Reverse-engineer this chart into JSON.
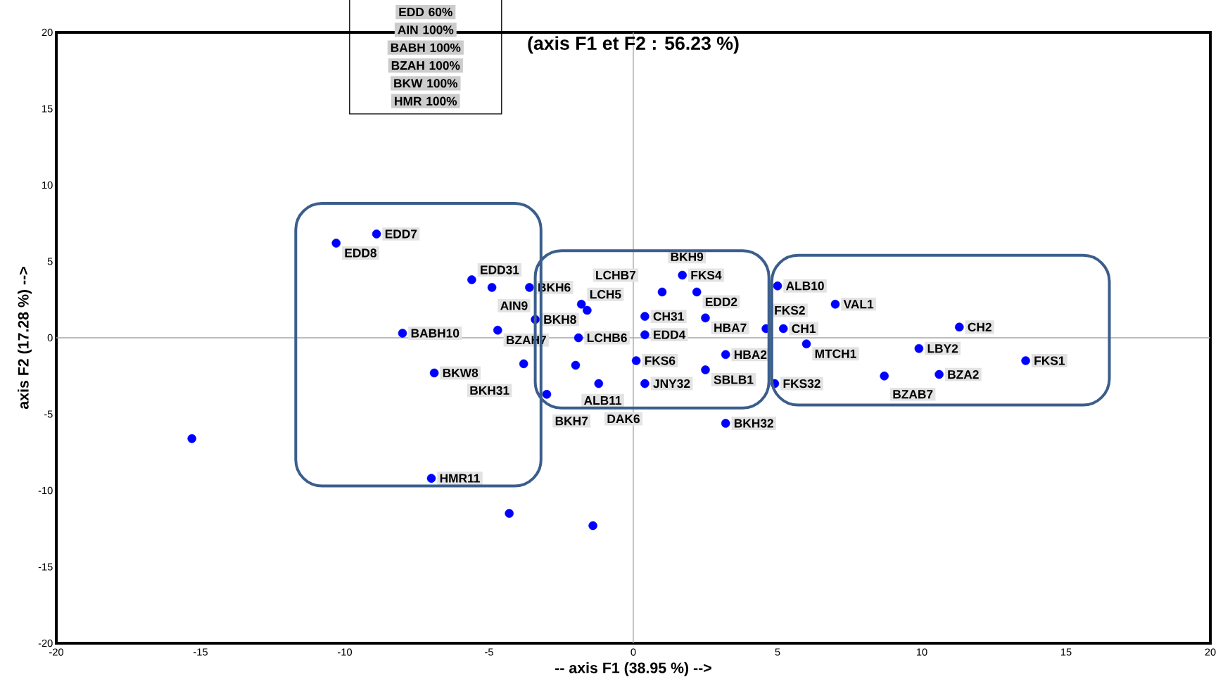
{
  "chart_data": {
    "type": "scatter",
    "title": "(axis F1 et F2 : 56.23 %)",
    "xlabel": "-- axis F1 (38.95 %) -->",
    "ylabel": "axis F2 (17.28 %) -->",
    "xlim": [
      -20,
      20
    ],
    "ylim": [
      -20,
      20
    ],
    "xticks": [
      -20,
      -15,
      -10,
      -5,
      0,
      5,
      10,
      15,
      20
    ],
    "yticks": [
      -20,
      -15,
      -10,
      -5,
      0,
      5,
      10,
      15,
      20
    ],
    "marker": "circle",
    "series": [
      {
        "color": "#0000ff",
        "x": [
          -10.3,
          -8.9,
          -5.6,
          -4.9,
          -8.0,
          -4.7,
          -6.9,
          -7.0,
          -3.6,
          -1.8,
          -1.6,
          -3.4,
          -1.9,
          -3.8,
          -2.0,
          -3.0,
          -1.2,
          1.7,
          1.0,
          2.2,
          0.4,
          0.4,
          2.5,
          3.2,
          0.1,
          0.4,
          2.5,
          3.2,
          4.6,
          5.0,
          7.0,
          5.2,
          6.0,
          4.9,
          8.7,
          9.9,
          11.3,
          10.6,
          13.6,
          -15.3,
          -4.3,
          -1.4
        ],
        "values": [
          6.2,
          6.8,
          3.8,
          3.3,
          0.3,
          0.5,
          -2.3,
          -9.2,
          3.3,
          2.2,
          1.8,
          1.2,
          0.0,
          -1.7,
          -1.8,
          -3.7,
          -3.0,
          4.1,
          3.0,
          3.0,
          1.4,
          0.2,
          1.3,
          -1.1,
          -1.5,
          -3.0,
          -2.1,
          -5.6,
          0.6,
          3.4,
          2.2,
          0.6,
          -0.4,
          -3.0,
          -2.5,
          -0.7,
          0.7,
          -2.4,
          -1.5,
          -6.6,
          -11.5,
          -12.3
        ]
      }
    ],
    "annotations": [
      "EDD 60%",
      "AIN 100%",
      "BABH 100%",
      "BZAH 100%",
      "BKW 100%",
      "HMR 100%",
      {
        "text": "EDD8",
        "x": -10.3,
        "y": 6.2
      },
      {
        "text": "EDD7",
        "x": -8.9,
        "y": 6.8
      },
      {
        "text": "EDD31",
        "x": -5.6,
        "y": 3.8
      },
      {
        "text": "AIN9",
        "x": -4.9,
        "y": 3.3
      },
      {
        "text": "BABH10",
        "x": -8.0,
        "y": 0.3
      },
      {
        "text": "BZAH7",
        "x": -4.7,
        "y": 0.5
      },
      {
        "text": "BKW8",
        "x": -6.9,
        "y": -2.3
      },
      {
        "text": "HMR11",
        "x": -7.0,
        "y": -9.2
      },
      {
        "text": "BKH6",
        "x": -3.6,
        "y": 3.3
      },
      {
        "text": "LCH5",
        "x": -1.8,
        "y": 2.2
      },
      {
        "text": "LCHB7",
        "x": -1.6,
        "y": 1.8
      },
      {
        "text": "BKH8",
        "x": -3.4,
        "y": 1.2
      },
      {
        "text": "LCHB6",
        "x": -1.9,
        "y": 0.0
      },
      {
        "text": "BKH31",
        "x": -3.8,
        "y": -1.7
      },
      {
        "text": "ALB11",
        "x": -2.0,
        "y": -1.8
      },
      {
        "text": "BKH7",
        "x": -3.0,
        "y": -3.7
      },
      {
        "text": "DAK6",
        "x": -1.2,
        "y": -3.0
      },
      {
        "text": "FKS4",
        "x": 1.7,
        "y": 4.1
      },
      {
        "text": "BKH9",
        "x": 1.0,
        "y": 3.0
      },
      {
        "text": "EDD2",
        "x": 2.2,
        "y": 3.0
      },
      {
        "text": "CH31",
        "x": 0.4,
        "y": 1.4
      },
      {
        "text": "EDD4",
        "x": 0.4,
        "y": 0.2
      },
      {
        "text": "HBA7",
        "x": 2.5,
        "y": 1.3
      },
      {
        "text": "HBA2",
        "x": 3.2,
        "y": -1.1
      },
      {
        "text": "FKS6",
        "x": 0.1,
        "y": -1.5
      },
      {
        "text": "JNY32",
        "x": 0.4,
        "y": -3.0
      },
      {
        "text": "SBLB1",
        "x": 2.5,
        "y": -2.1
      },
      {
        "text": "BKH32",
        "x": 3.2,
        "y": -5.6
      },
      {
        "text": "FKS2",
        "x": 4.6,
        "y": 0.6
      },
      {
        "text": "ALB10",
        "x": 5.0,
        "y": 3.4
      },
      {
        "text": "VAL1",
        "x": 7.0,
        "y": 2.2
      },
      {
        "text": "CH1",
        "x": 5.2,
        "y": 0.6
      },
      {
        "text": "MTCH1",
        "x": 6.0,
        "y": -0.4
      },
      {
        "text": "FKS32",
        "x": 4.9,
        "y": -3.0
      },
      {
        "text": "BZAB7",
        "x": 8.7,
        "y": -2.5
      },
      {
        "text": "LBY2",
        "x": 9.9,
        "y": -0.7
      },
      {
        "text": "CH2",
        "x": 11.3,
        "y": 0.7
      },
      {
        "text": "BZA2",
        "x": 10.6,
        "y": -2.4
      },
      {
        "text": "FKS1",
        "x": 13.6,
        "y": -1.5
      }
    ]
  }
}
